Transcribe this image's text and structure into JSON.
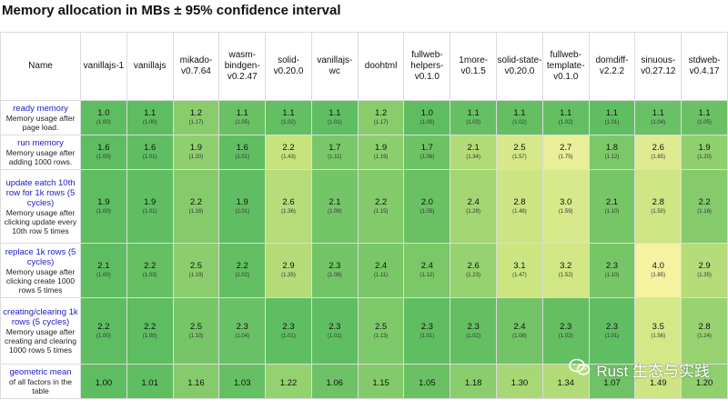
{
  "title": "Memory allocation in MBs ± 95% confidence interval",
  "colors": {
    "best": "#5ebd61",
    "worst": "#f5f2a0",
    "row_label_title": "#1a1acc"
  },
  "watermark": {
    "icon": "wechat-icon",
    "text": "Rust 生态与实践"
  },
  "chart_data": {
    "type": "table",
    "title": "Memory allocation in MBs ± 95% confidence interval",
    "name_header": "Name",
    "frameworks": [
      "vanillajs-1",
      "vanillajs",
      "mikado-v0.7.64",
      "wasm-bindgen-v0.2.47",
      "solid-v0.20.0",
      "vanillajs-wc",
      "doohtml",
      "fullweb-helpers-v0.1.0",
      "1more-v0.1.5",
      "solid-state-v0.20.0",
      "fullweb-template-v0.1.0",
      "domdiff-v2.2.2",
      "sinuous-v0.27.12",
      "stdweb-v0.4.17"
    ],
    "rows": [
      {
        "title": "ready memory",
        "description": "Memory usage after page load.",
        "values": [
          "1.0",
          "1.1",
          "1.2",
          "1.1",
          "1.1",
          "1.1",
          "1.2",
          "1.0",
          "1.1",
          "1.1",
          "1.1",
          "1.1",
          "1.1",
          "1.1"
        ],
        "factors": [
          "(1.00)",
          "(1.00)",
          "(1.17)",
          "(1.05)",
          "(1.02)",
          "(1.01)",
          "(1.17)",
          "(1.00)",
          "(1.03)",
          "(1.02)",
          "(1.02)",
          "(1.01)",
          "(1.04)",
          "(1.05)"
        ]
      },
      {
        "title": "run memory",
        "description": "Memory usage after adding 1000 rows.",
        "values": [
          "1.6",
          "1.6",
          "1.9",
          "1.6",
          "2.2",
          "1.7",
          "1.9",
          "1.7",
          "2.1",
          "2.5",
          "2.7",
          "1.8",
          "2.6",
          "1.9"
        ],
        "factors": [
          "(1.00)",
          "(1.01)",
          "(1.20)",
          "(1.01)",
          "(1.43)",
          "(1.11)",
          "(1.19)",
          "(1.06)",
          "(1.34)",
          "(1.57)",
          "(1.75)",
          "(1.12)",
          "(1.65)",
          "(1.20)"
        ]
      },
      {
        "title": "update eatch 10th row for 1k rows (5 cycles)",
        "description": "Memory usage after clicking update every 10th row 5 times",
        "values": [
          "1.9",
          "1.9",
          "2.2",
          "1.9",
          "2.6",
          "2.1",
          "2.2",
          "2.0",
          "2.4",
          "2.8",
          "3.0",
          "2.1",
          "2.8",
          "2.2"
        ],
        "factors": [
          "(1.00)",
          "(1.01)",
          "(1.16)",
          "(1.01)",
          "(1.36)",
          "(1.09)",
          "(1.15)",
          "(1.05)",
          "(1.28)",
          "(1.48)",
          "(1.59)",
          "(1.10)",
          "(1.50)",
          "(1.16)"
        ]
      },
      {
        "title": "replace 1k rows (5 cycles)",
        "description": "Memory usage after clicking create 1000 rows 5 times",
        "values": [
          "2.1",
          "2.2",
          "2.5",
          "2.2",
          "2.9",
          "2.3",
          "2.4",
          "2.4",
          "2.6",
          "3.1",
          "3.2",
          "2.3",
          "4.0",
          "2.9"
        ],
        "factors": [
          "(1.00)",
          "(1.03)",
          "(1.19)",
          "(1.02)",
          "(1.35)",
          "(1.08)",
          "(1.11)",
          "(1.12)",
          "(1.23)",
          "(1.47)",
          "(1.52)",
          "(1.10)",
          "(1.85)",
          "(1.35)"
        ]
      },
      {
        "title": "creating/clearing 1k rows (5 cycles)",
        "description": "Memory usage after creating and clearing 1000 rows 5 times",
        "values": [
          "2.2",
          "2.2",
          "2.5",
          "2.3",
          "2.3",
          "2.3",
          "2.5",
          "2.3",
          "2.3",
          "2.4",
          "2.3",
          "2.3",
          "3.5",
          "2.8"
        ],
        "factors": [
          "(1.00)",
          "(1.00)",
          "(1.10)",
          "(1.04)",
          "(1.01)",
          "(1.01)",
          "(1.13)",
          "(1.01)",
          "(1.02)",
          "(1.08)",
          "(1.02)",
          "(1.01)",
          "(1.56)",
          "(1.24)"
        ]
      },
      {
        "title": "geometric mean",
        "description": "of all factors in the table",
        "values": [
          "1.00",
          "1.01",
          "1.16",
          "1.03",
          "1.22",
          "1.06",
          "1.15",
          "1.05",
          "1.18",
          "1.30",
          "1.34",
          "1.07",
          "1.49",
          "1.20"
        ],
        "factors": []
      }
    ]
  }
}
